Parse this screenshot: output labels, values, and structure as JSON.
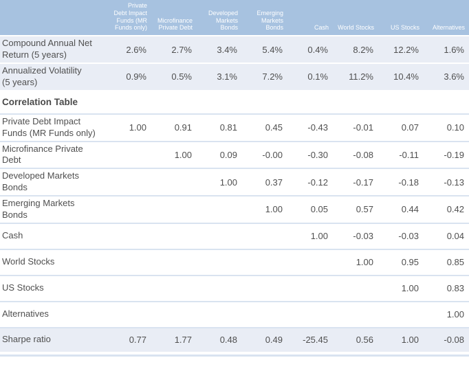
{
  "colors": {
    "header-bg": "#a7c2e0",
    "header-text": "#ffffff",
    "band-bg": "#e9edf5",
    "separator": "#d9e3f0",
    "text": "#4f4f4f",
    "section-text": "#4a4a4a"
  },
  "table": {
    "columns": [
      {
        "label": ""
      },
      {
        "label": "Private\nDebt Impact\nFunds (MR\nFunds only)"
      },
      {
        "label": "Microfinance\nPrivate Debt"
      },
      {
        "label": "Developed\nMarkets\nBonds"
      },
      {
        "label": "Emerging\nMarkets\nBonds"
      },
      {
        "label": "Cash"
      },
      {
        "label": "World Stocks"
      },
      {
        "label": "US Stocks"
      },
      {
        "label": "Alternatives"
      }
    ],
    "rows": [
      {
        "type": "stat",
        "label": "Compound Annual Net\nReturn (5 years)",
        "values": [
          "2.6%",
          "2.7%",
          "3.4%",
          "5.4%",
          "0.4%",
          "8.2%",
          "12.2%",
          "1.6%"
        ]
      },
      {
        "type": "stat",
        "label": "Annualized Volatility\n(5 years)",
        "values": [
          "0.9%",
          "0.5%",
          "3.1%",
          "7.2%",
          "0.1%",
          "11.2%",
          "10.4%",
          "3.6%"
        ]
      },
      {
        "type": "section",
        "label": "Correlation Table",
        "values": [
          "",
          "",
          "",
          "",
          "",
          "",
          "",
          ""
        ]
      },
      {
        "type": "corr",
        "label": "Private Debt Impact\nFunds (MR Funds only)",
        "values": [
          "1.00",
          "0.91",
          "0.81",
          "0.45",
          "-0.43",
          "-0.01",
          "0.07",
          "0.10"
        ]
      },
      {
        "type": "corr",
        "label": "Microfinance Private\nDebt",
        "values": [
          "",
          "1.00",
          "0.09",
          "-0.00",
          "-0.30",
          "-0.08",
          "-0.11",
          "-0.19"
        ]
      },
      {
        "type": "corr",
        "label": "Developed Markets\nBonds",
        "values": [
          "",
          "",
          "1.00",
          "0.37",
          "-0.12",
          "-0.17",
          "-0.18",
          "-0.13"
        ]
      },
      {
        "type": "corr",
        "label": "Emerging Markets\nBonds",
        "values": [
          "",
          "",
          "",
          "1.00",
          "0.05",
          "0.57",
          "0.44",
          "0.42"
        ]
      },
      {
        "type": "corr",
        "label": "Cash",
        "values": [
          "",
          "",
          "",
          "",
          "1.00",
          "-0.03",
          "-0.03",
          "0.04"
        ]
      },
      {
        "type": "corr",
        "label": "World Stocks",
        "values": [
          "",
          "",
          "",
          "",
          "",
          "1.00",
          "0.95",
          "0.85"
        ]
      },
      {
        "type": "corr",
        "label": "US Stocks",
        "values": [
          "",
          "",
          "",
          "",
          "",
          "",
          "1.00",
          "0.83"
        ]
      },
      {
        "type": "corr",
        "label": "Alternatives",
        "values": [
          "",
          "",
          "",
          "",
          "",
          "",
          "",
          "1.00"
        ]
      },
      {
        "type": "sharpe",
        "label": "Sharpe ratio",
        "values": [
          "0.77",
          "1.77",
          "0.48",
          "0.49",
          "-25.45",
          "0.56",
          "1.00",
          "-0.08"
        ]
      }
    ]
  }
}
